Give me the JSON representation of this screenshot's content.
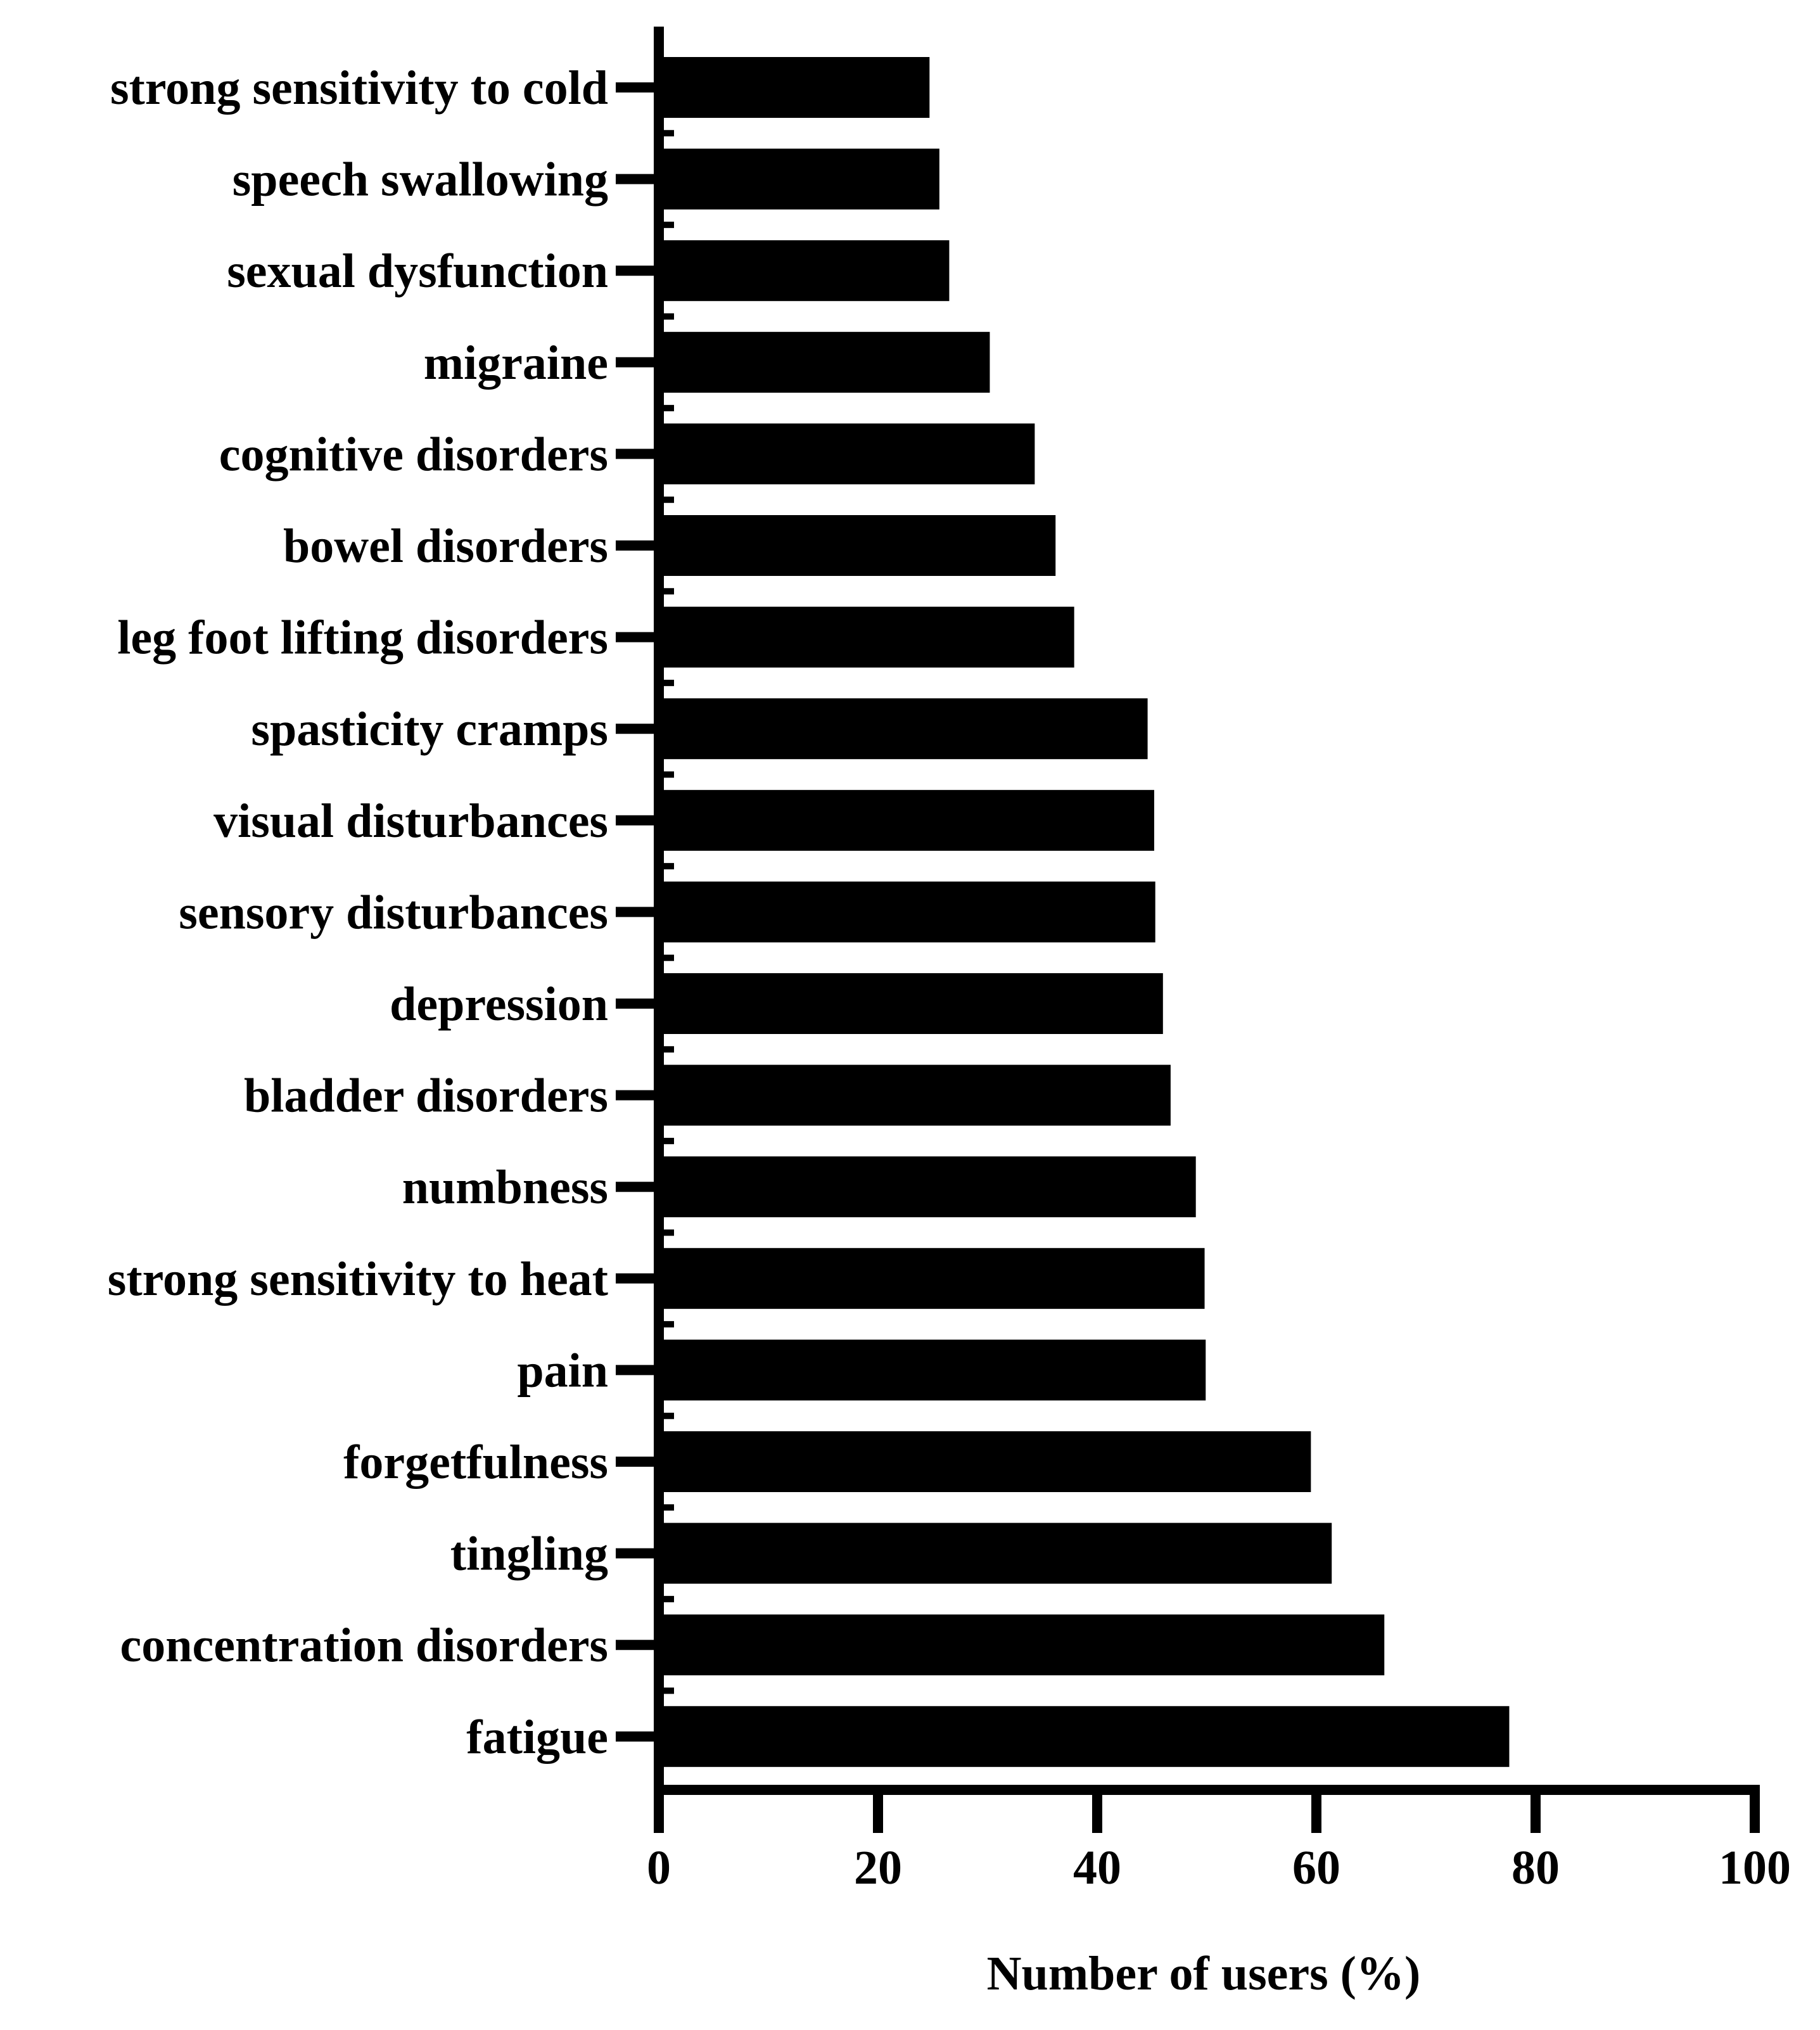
{
  "chart_data": {
    "type": "bar",
    "orientation": "horizontal",
    "categories": [
      "strong sensitivity to cold",
      "speech swallowing",
      "sexual dysfunction",
      "migraine",
      "cognitive disorders",
      "bowel disorders",
      "leg foot lifting disorders",
      "spasticity cramps",
      "visual disturbances",
      "sensory disturbances",
      "depression",
      "bladder disorders",
      "numbness",
      "strong sensitivity to heat",
      "pain",
      "forgetfulness",
      "tingling",
      "concentration disorders",
      "fatigue"
    ],
    "values": [
      24.7,
      25.6,
      26.5,
      30.2,
      34.3,
      36.2,
      37.9,
      44.6,
      45.2,
      45.3,
      46.0,
      46.7,
      49.0,
      49.8,
      49.9,
      59.5,
      61.4,
      66.2,
      77.6
    ],
    "title": "",
    "xlabel": "Number of users (%)",
    "ylabel": "",
    "xlim": [
      0,
      100
    ],
    "xticks": [
      "0",
      "20",
      "40",
      "60",
      "80",
      "100"
    ],
    "grid": false,
    "legend": "none",
    "bar_color": "#000000",
    "axis_color": "#000000"
  }
}
